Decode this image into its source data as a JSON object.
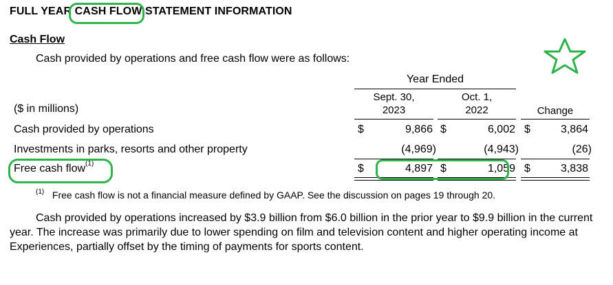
{
  "heading": "FULL YEAR CASH FLOW STATEMENT INFORMATION",
  "subheading": "Cash Flow",
  "intro": "Cash provided by operations and free cash flow were as follows:",
  "table": {
    "units_label": "($ in millions)",
    "year_ended": "Year Ended",
    "col1": [
      "Sept. 30,",
      "2023"
    ],
    "col2": [
      "Oct. 1,",
      "2022"
    ],
    "change": "Change",
    "currency": "$",
    "rows": [
      {
        "label": "Cash provided by operations",
        "v1": "9,866",
        "v2": "6,002",
        "v3": "3,864"
      },
      {
        "label": "Investments in parks, resorts and other property",
        "v1": "(4,969)",
        "v2": "(4,943)",
        "v3": "(26)"
      },
      {
        "label": "Free cash flow",
        "sup": "(1)",
        "v1": "4,897",
        "v2": "1,059",
        "v3": "3,838"
      }
    ]
  },
  "footnote": {
    "marker": "(1)",
    "text": "Free cash flow is not a financial measure defined by GAAP. See the discussion on pages 19 through 20."
  },
  "paragraph": "Cash provided by operations increased by $3.9 billion from $6.0 billion in the prior year to $9.9 billion in the current year. The increase was primarily due to lower spending on film and television content and higher operating income at Experiences, partially offset by the timing of payments for sports content.",
  "annotation_color": "#2db34a",
  "annotation_icon": "star-outline-icon"
}
